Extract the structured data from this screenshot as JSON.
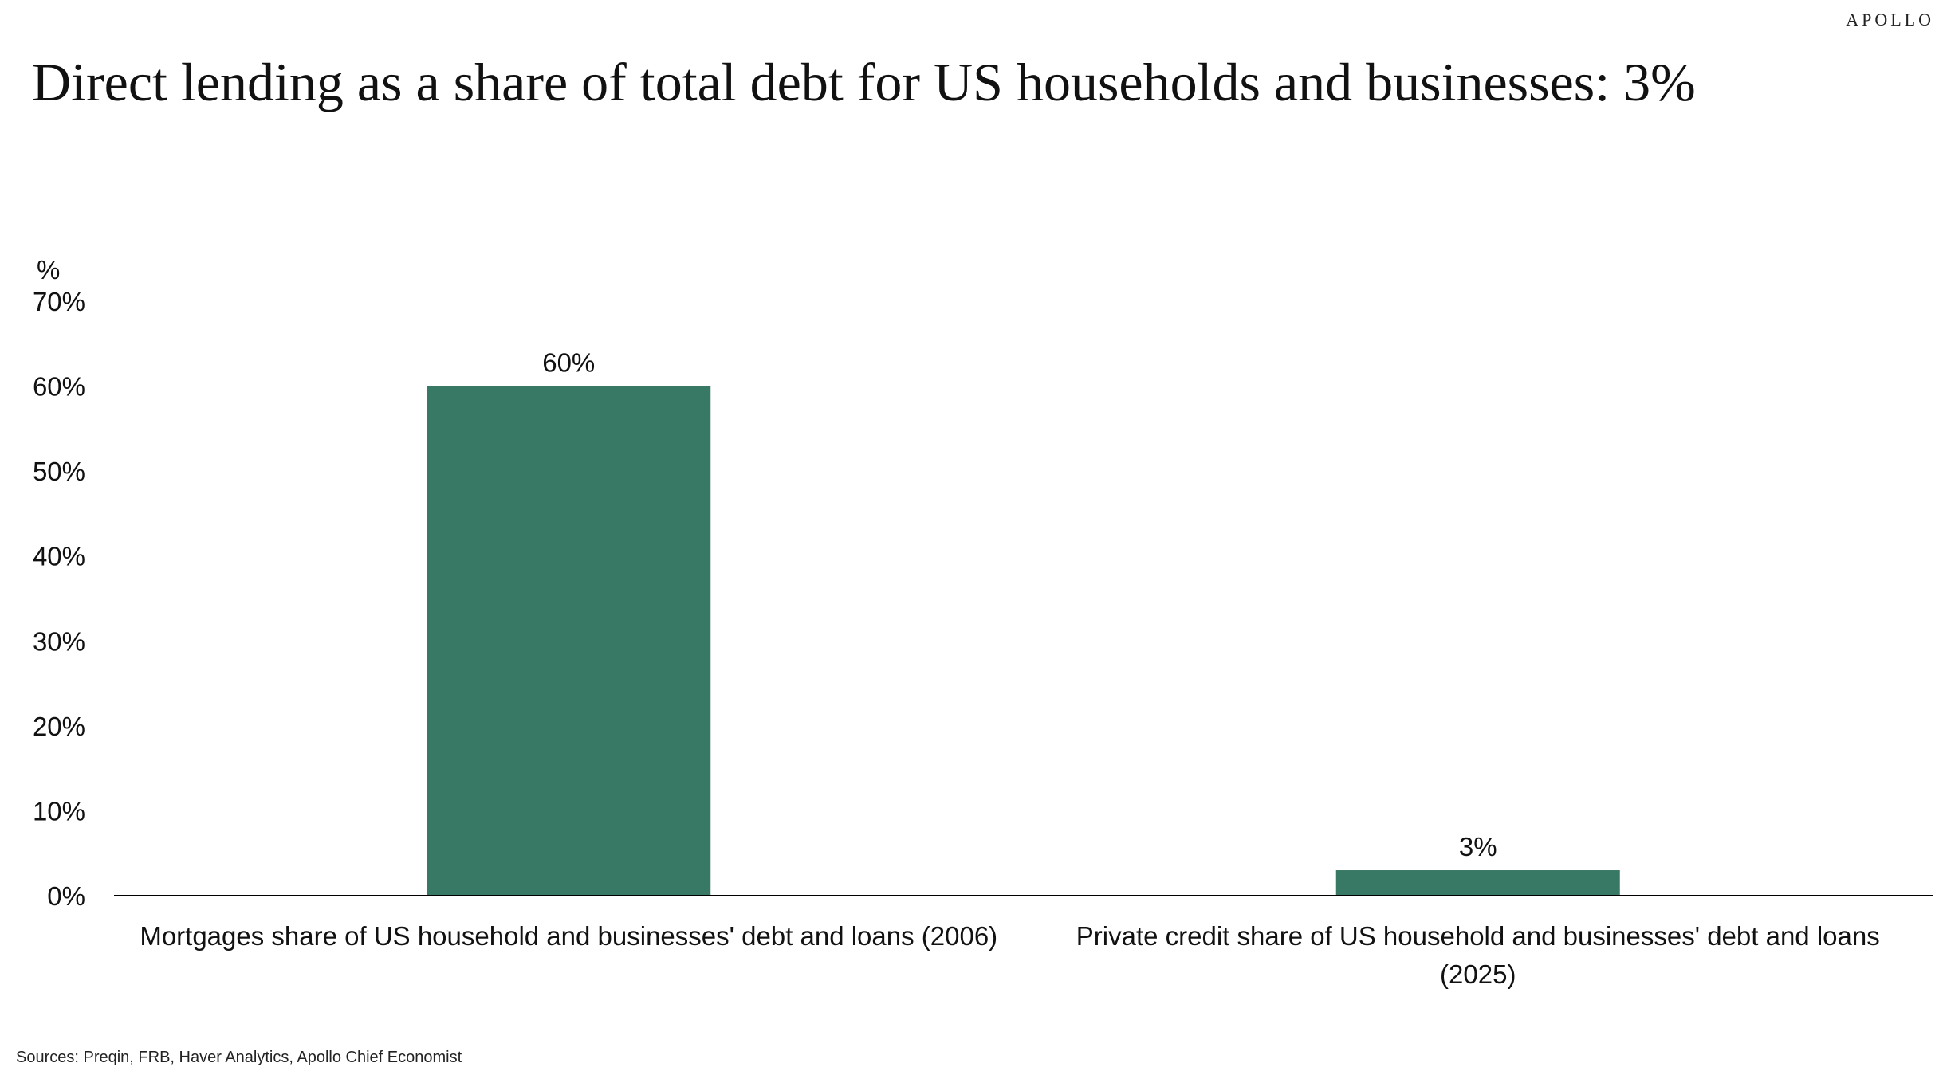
{
  "brand": "APOLLO",
  "title": "Direct lending as a share of total debt for US households and businesses: 3%",
  "source": "Sources: Preqin, FRB, Haver Analytics, Apollo Chief Economist",
  "colors": {
    "bar": "#377965",
    "axis": "#000000",
    "text": "#111111"
  },
  "chart_data": {
    "type": "bar",
    "title": "Direct lending as a share of total debt for US households and businesses: 3%",
    "ylabel": "%",
    "ylim": [
      0,
      70
    ],
    "yticks": [
      0,
      10,
      20,
      30,
      40,
      50,
      60,
      70
    ],
    "ytick_labels": [
      "0%",
      "10%",
      "20%",
      "30%",
      "40%",
      "50%",
      "60%",
      "70%"
    ],
    "grid": false,
    "categories": [
      [
        "Mortgages share of US household and businesses' debt and loans (2006)"
      ],
      [
        "Private credit share of US household and businesses' debt and loans",
        "(2025)"
      ]
    ],
    "values": [
      60,
      3
    ],
    "data_labels": [
      "60%",
      "3%"
    ]
  }
}
